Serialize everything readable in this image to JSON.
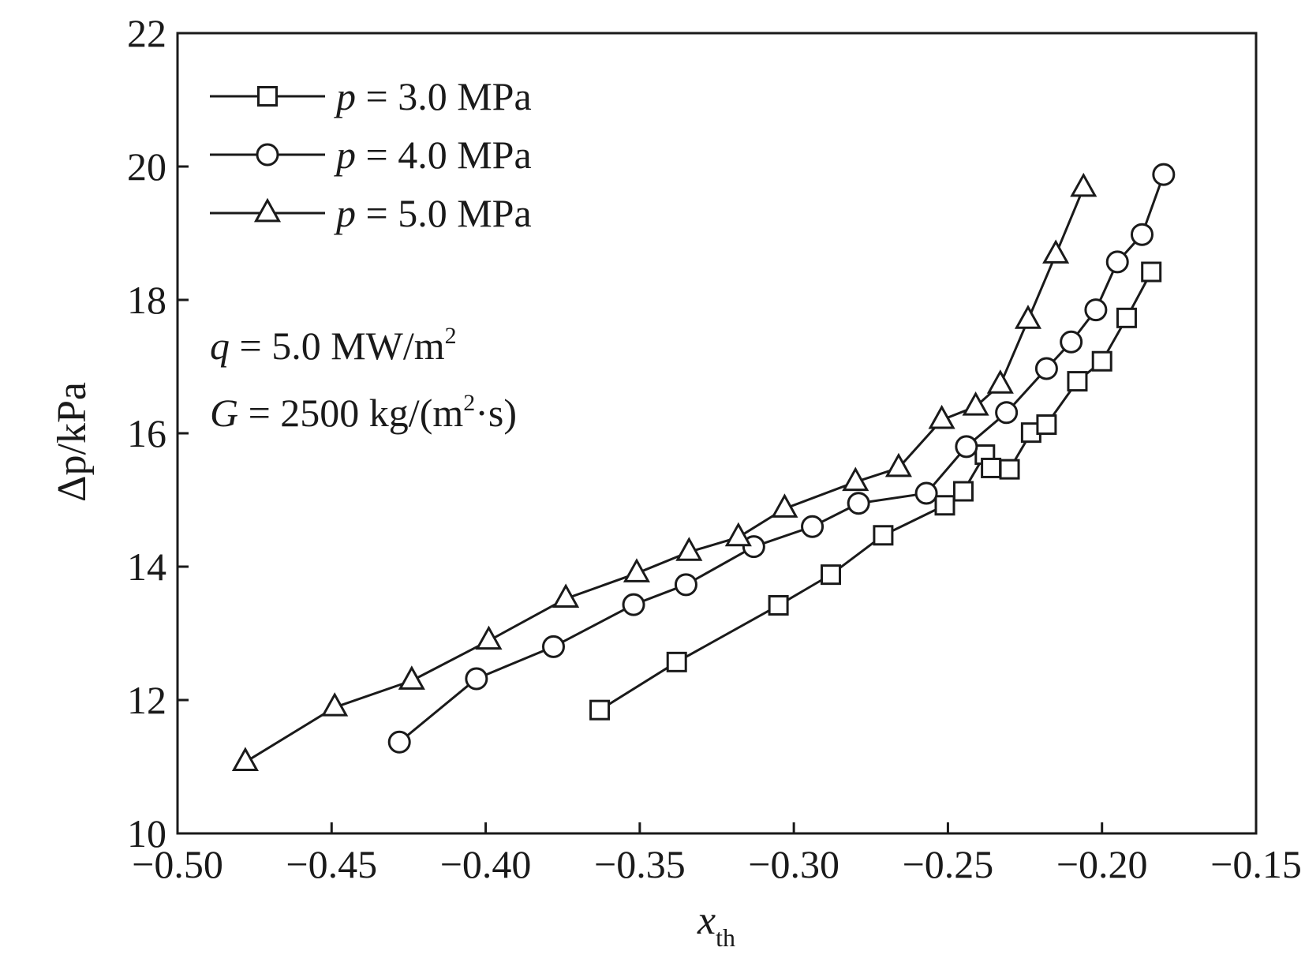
{
  "chart_data": {
    "type": "line",
    "title": "",
    "xlabel": "x",
    "xlabel_sub": "th",
    "ylabel": "Δp/kPa",
    "xlim": [
      -0.5,
      -0.15
    ],
    "ylim": [
      10,
      22
    ],
    "x_ticks": [
      -0.5,
      -0.45,
      -0.4,
      -0.35,
      -0.3,
      -0.25,
      -0.2,
      -0.15
    ],
    "x_tick_labels": [
      "−0.50",
      "−0.45",
      "−0.40",
      "−0.35",
      "−0.30",
      "−0.25",
      "−0.20",
      "−0.15"
    ],
    "y_ticks": [
      10,
      12,
      14,
      16,
      18,
      20,
      22
    ],
    "y_tick_labels": [
      "10",
      "12",
      "14",
      "16",
      "18",
      "20",
      "22"
    ],
    "grid": false,
    "legend_position": "top-left",
    "series": [
      {
        "name": "p = 3.0 MPa",
        "legend_var": "p",
        "legend_value": " = 3.0 MPa",
        "marker": "square",
        "x": [
          -0.363,
          -0.338,
          -0.305,
          -0.288,
          -0.271,
          -0.251,
          -0.245,
          -0.238,
          -0.236,
          -0.23,
          -0.223,
          -0.218,
          -0.208,
          -0.2,
          -0.192,
          -0.184
        ],
        "y": [
          11.85,
          12.57,
          13.42,
          13.88,
          14.47,
          14.92,
          15.13,
          15.68,
          15.48,
          15.46,
          16.01,
          16.13,
          16.78,
          17.08,
          17.73,
          18.42
        ]
      },
      {
        "name": "p = 4.0 MPa",
        "legend_var": "p",
        "legend_value": " = 4.0 MPa",
        "marker": "circle",
        "x": [
          -0.428,
          -0.403,
          -0.378,
          -0.352,
          -0.335,
          -0.313,
          -0.294,
          -0.279,
          -0.257,
          -0.244,
          -0.231,
          -0.218,
          -0.21,
          -0.202,
          -0.195,
          -0.187,
          -0.18
        ],
        "y": [
          11.37,
          12.32,
          12.8,
          13.43,
          13.73,
          14.3,
          14.6,
          14.95,
          15.1,
          15.8,
          16.31,
          16.97,
          17.37,
          17.85,
          18.57,
          18.98,
          19.88
        ]
      },
      {
        "name": "p = 5.0 MPa",
        "legend_var": "p",
        "legend_value": " = 5.0 MPa",
        "marker": "triangle",
        "x": [
          -0.478,
          -0.449,
          -0.424,
          -0.399,
          -0.374,
          -0.351,
          -0.334,
          -0.318,
          -0.303,
          -0.28,
          -0.266,
          -0.252,
          -0.241,
          -0.233,
          -0.224,
          -0.215,
          -0.206
        ],
        "y": [
          11.07,
          11.89,
          12.29,
          12.89,
          13.52,
          13.9,
          14.22,
          14.44,
          14.87,
          15.27,
          15.48,
          16.2,
          16.4,
          16.73,
          17.7,
          18.68,
          19.68
        ]
      }
    ],
    "annotations": [
      {
        "var": "q",
        "text": " = 5.0 MW/m",
        "sup": "2"
      },
      {
        "var": "G",
        "text": " = 2500 kg/(m",
        "sup": "2",
        "tail": "·s)"
      }
    ]
  }
}
